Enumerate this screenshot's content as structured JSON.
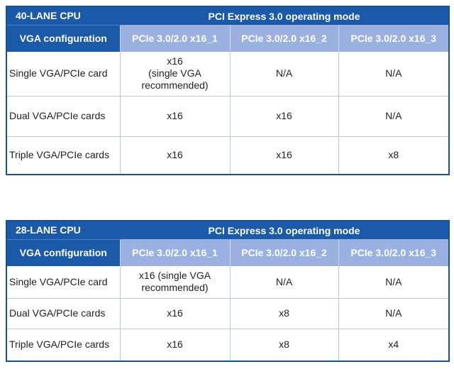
{
  "table_40": {
    "cpu_label": "40-LANE CPU",
    "mode_label": "PCI Express 3.0 operating mode",
    "config_header": "VGA configuration",
    "slots": [
      "PCIe 3.0/2.0 x16_1",
      "PCIe 3.0/2.0 x16_2",
      "PCIe 3.0/2.0 x16_3"
    ],
    "rows": [
      {
        "config": "Single VGA/PCIe card",
        "slot1_line1": "x16",
        "slot1_line2": "(single VGA",
        "slot1_line3": "recommended)",
        "slot2": "N/A",
        "slot3": "N/A"
      },
      {
        "config": "Dual VGA/PCIe cards",
        "slot1": "x16",
        "slot2": "x16",
        "slot3": "N/A"
      },
      {
        "config": "Triple VGA/PCIe cards",
        "slot1": "x16",
        "slot2": "x16",
        "slot3": "x8"
      }
    ]
  },
  "table_28": {
    "cpu_label": "28-LANE CPU",
    "mode_label": "PCI Express 3.0 operating mode",
    "config_header": "VGA configuration",
    "slots": [
      "PCIe 3.0/2.0 x16_1",
      "PCIe 3.0/2.0 x16_2",
      "PCIe 3.0/2.0 x16_3"
    ],
    "rows": [
      {
        "config": "Single VGA/PCIe card",
        "slot1_line1": "x16 (single VGA",
        "slot1_line2": "recommended)",
        "slot2": "N/A",
        "slot3": "N/A"
      },
      {
        "config": "Dual VGA/PCIe cards",
        "slot1": "x16",
        "slot2": "x8",
        "slot3": "N/A"
      },
      {
        "config": "Triple VGA/PCIe cards",
        "slot1": "x16",
        "slot2": "x8",
        "slot3": "x4"
      }
    ]
  }
}
